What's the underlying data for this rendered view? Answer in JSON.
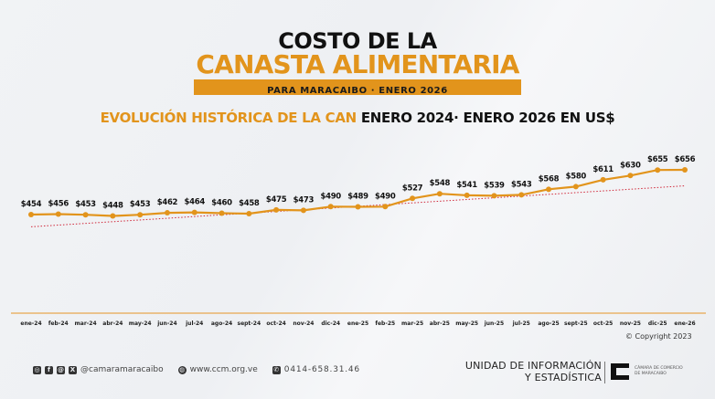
{
  "header": {
    "title_line1": "COSTO DE LA",
    "title_line2": "CANASTA ALIMENTARIA",
    "subtitle": "PARA MARACAIBO ·  ENERO 2026",
    "section_heading_orange": "EVOLUCIÓN HISTÓRICA DE LA CAN ",
    "section_heading_black": "ENERO 2024·  ENERO 2026 EN US$"
  },
  "colors": {
    "accent": "#e2941c",
    "line": "#e2941c",
    "trend": "#d0283a",
    "text": "#111111"
  },
  "chart_data": {
    "type": "line",
    "title": "EVOLUCIÓN HISTÓRICA DE LA CAN ENERO 2024· ENERO 2026 EN US$",
    "xlabel": "",
    "ylabel": "",
    "currency_prefix": "$",
    "categories": [
      "ene-24",
      "feb-24",
      "mar-24",
      "abr-24",
      "may-24",
      "jun-24",
      "jul-24",
      "ago-24",
      "sept-24",
      "oct-24",
      "nov-24",
      "dic-24",
      "ene-25",
      "feb-25",
      "mar-25",
      "abr-25",
      "may-25",
      "jun-25",
      "jul-25",
      "ago-25",
      "sept-25",
      "oct-25",
      "nov-25",
      "dic-25",
      "ene-26"
    ],
    "series": [
      {
        "name": "Canasta Alimentaria (US$)",
        "values": [
          454,
          456,
          453,
          448,
          453,
          462,
          464,
          460,
          458,
          475,
          473,
          490,
          489,
          490,
          527,
          548,
          541,
          539,
          543,
          568,
          580,
          611,
          630,
          655,
          656
        ]
      }
    ],
    "trendline": {
      "style": "dotted",
      "start": 440,
      "end": 625
    },
    "grid": false,
    "legend": "none"
  },
  "footer": {
    "social_icons": [
      "instagram-icon",
      "facebook-icon",
      "threads-icon",
      "x-icon"
    ],
    "social_handle": "@camaramaracaibo",
    "website": "www.ccm.org.ve",
    "phone": "0414-658.31.46",
    "copyright": "Copyright 2023",
    "unit_line1": "UNIDAD DE INFORMACIÓN",
    "unit_line2": "Y ESTADÍSTICA",
    "org_line1": "CÁMARA DE COMERCIO",
    "org_line2": "DE MARACAIBO"
  }
}
